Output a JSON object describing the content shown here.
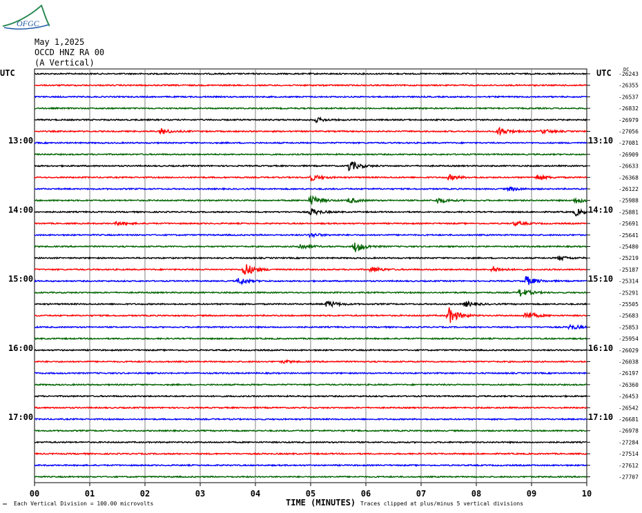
{
  "header": {
    "logo_text": "OFGC",
    "date": "May 1,2025",
    "station": "OCCD HNZ RA 00",
    "component": "(A Vertical)"
  },
  "axes": {
    "left_tz": "UTC",
    "right_tz": "UTC",
    "xlabel": "TIME (MINUTES)",
    "footer_left": "Each Vertical Division =  100.00 microvolts",
    "footer_right": "Traces clipped at plus/minus 5 vertical divisions",
    "dc_label": "DC"
  },
  "colors": {
    "trace_cycle": [
      "#000000",
      "#ff0000",
      "#0000ff",
      "#006400"
    ],
    "grid": "#808080"
  },
  "chart_data": {
    "type": "line",
    "title": "",
    "xlabel": "TIME (MINUTES)",
    "xlim": [
      0,
      10
    ],
    "x_ticks": [
      "00",
      "01",
      "02",
      "03",
      "04",
      "05",
      "06",
      "07",
      "08",
      "09",
      "10"
    ],
    "left_hour_labels": [
      "13:00",
      "14:00",
      "15:00",
      "16:00",
      "17:00"
    ],
    "right_hour_labels": [
      "13:10",
      "14:10",
      "15:10",
      "16:10",
      "17:10"
    ],
    "hour_label_trace_index": [
      6,
      12,
      18,
      24,
      30
    ],
    "dc_offsets": [
      -26243,
      -26355,
      -26537,
      -26832,
      -26979,
      -27056,
      -27081,
      -26909,
      -26633,
      -26368,
      -26122,
      -25988,
      -25881,
      -25691,
      -25641,
      -25480,
      -25219,
      -25187,
      -25314,
      -25291,
      -25505,
      -25683,
      -25853,
      -25954,
      -26029,
      -26038,
      -26197,
      -26360,
      -26453,
      -26542,
      -26681,
      -26978,
      -27284,
      -27514,
      -27612,
      -27707
    ],
    "events": [
      {
        "trace": 4,
        "minute": 5.1,
        "amp": 3
      },
      {
        "trace": 5,
        "minute": 2.3,
        "amp": 4
      },
      {
        "trace": 5,
        "minute": 8.4,
        "amp": 6
      },
      {
        "trace": 5,
        "minute": 9.2,
        "amp": 3
      },
      {
        "trace": 8,
        "minute": 5.7,
        "amp": 8
      },
      {
        "trace": 9,
        "minute": 5.0,
        "amp": 5
      },
      {
        "trace": 9,
        "minute": 7.5,
        "amp": 4
      },
      {
        "trace": 9,
        "minute": 9.1,
        "amp": 4
      },
      {
        "trace": 10,
        "minute": 8.6,
        "amp": 3
      },
      {
        "trace": 11,
        "minute": 5.0,
        "amp": 7
      },
      {
        "trace": 11,
        "minute": 5.7,
        "amp": 4
      },
      {
        "trace": 11,
        "minute": 7.3,
        "amp": 4
      },
      {
        "trace": 11,
        "minute": 9.8,
        "amp": 4
      },
      {
        "trace": 12,
        "minute": 5.0,
        "amp": 5
      },
      {
        "trace": 12,
        "minute": 9.8,
        "amp": 5
      },
      {
        "trace": 13,
        "minute": 1.5,
        "amp": 3
      },
      {
        "trace": 13,
        "minute": 8.7,
        "amp": 3
      },
      {
        "trace": 14,
        "minute": 5.0,
        "amp": 3
      },
      {
        "trace": 15,
        "minute": 4.8,
        "amp": 4
      },
      {
        "trace": 15,
        "minute": 5.8,
        "amp": 8
      },
      {
        "trace": 16,
        "minute": 9.5,
        "amp": 3
      },
      {
        "trace": 17,
        "minute": 3.8,
        "amp": 10
      },
      {
        "trace": 17,
        "minute": 6.1,
        "amp": 4
      },
      {
        "trace": 17,
        "minute": 8.3,
        "amp": 4
      },
      {
        "trace": 18,
        "minute": 3.7,
        "amp": 5
      },
      {
        "trace": 18,
        "minute": 8.9,
        "amp": 7
      },
      {
        "trace": 19,
        "minute": 8.8,
        "amp": 6
      },
      {
        "trace": 20,
        "minute": 5.3,
        "amp": 5
      },
      {
        "trace": 20,
        "minute": 7.8,
        "amp": 4
      },
      {
        "trace": 21,
        "minute": 7.5,
        "amp": 12
      },
      {
        "trace": 21,
        "minute": 8.9,
        "amp": 6
      },
      {
        "trace": 22,
        "minute": 9.7,
        "amp": 4
      },
      {
        "trace": 25,
        "minute": 4.5,
        "amp": 2
      }
    ]
  }
}
